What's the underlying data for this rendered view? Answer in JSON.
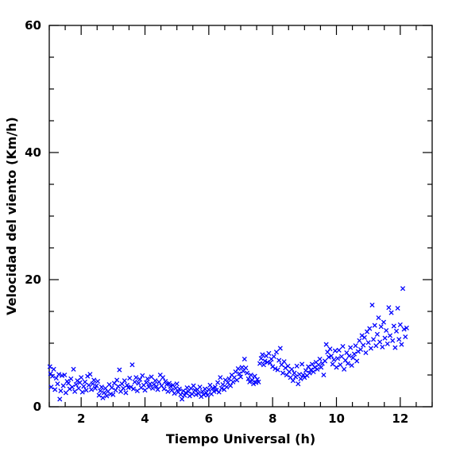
{
  "chart_data": {
    "type": "scatter",
    "title": "",
    "xlabel": "Tiempo Universal (h)",
    "ylabel": "Velocidad del viento (Km/h)",
    "xlim": [
      1,
      13
    ],
    "ylim": [
      0,
      60
    ],
    "xticks": [
      2,
      4,
      6,
      8,
      10,
      12
    ],
    "yticks": [
      0,
      20,
      40,
      60
    ],
    "x_minor_step": 0.5,
    "y_minor_step": 5,
    "grid": false,
    "legend": "none",
    "marker": "x",
    "color": "#0000ff",
    "series": [
      {
        "name": "",
        "points": [
          [
            1.02,
            6.3
          ],
          [
            1.04,
            5.2
          ],
          [
            1.06,
            3.1
          ],
          [
            1.1,
            4.8
          ],
          [
            1.14,
            5.9
          ],
          [
            1.18,
            2.7
          ],
          [
            1.22,
            4.5
          ],
          [
            1.26,
            3.6
          ],
          [
            1.3,
            5.1
          ],
          [
            1.33,
            1.2
          ],
          [
            1.36,
            2.5
          ],
          [
            1.4,
            4.9
          ],
          [
            1.44,
            3.3
          ],
          [
            1.48,
            5.0
          ],
          [
            1.52,
            2.2
          ],
          [
            1.56,
            4.0
          ],
          [
            1.6,
            3.7
          ],
          [
            1.64,
            2.8
          ],
          [
            1.68,
            4.4
          ],
          [
            1.72,
            3.1
          ],
          [
            1.76,
            5.9
          ],
          [
            1.8,
            2.4
          ],
          [
            1.84,
            3.5
          ],
          [
            1.88,
            4.1
          ],
          [
            1.92,
            2.9
          ],
          [
            1.96,
            3.8
          ],
          [
            2.0,
            4.6
          ],
          [
            2.04,
            2.3
          ],
          [
            2.08,
            3.2
          ],
          [
            2.12,
            3.9
          ],
          [
            2.16,
            2.6
          ],
          [
            2.2,
            4.8
          ],
          [
            2.24,
            3.4
          ],
          [
            2.28,
            5.1
          ],
          [
            2.32,
            2.7
          ],
          [
            2.36,
            3.6
          ],
          [
            2.4,
            4.2
          ],
          [
            2.44,
            2.9
          ],
          [
            2.48,
            3.3
          ],
          [
            2.52,
            4.0
          ],
          [
            2.56,
            1.8
          ],
          [
            2.6,
            2.5
          ],
          [
            2.64,
            3.1
          ],
          [
            2.68,
            1.4
          ],
          [
            2.72,
            2.2
          ],
          [
            2.76,
            2.9
          ],
          [
            2.8,
            1.7
          ],
          [
            2.84,
            2.4
          ],
          [
            2.88,
            3.5
          ],
          [
            2.92,
            2.0
          ],
          [
            2.96,
            3.0
          ],
          [
            3.0,
            1.9
          ],
          [
            3.04,
            3.7
          ],
          [
            3.08,
            2.6
          ],
          [
            3.12,
            4.2
          ],
          [
            3.16,
            3.2
          ],
          [
            3.2,
            5.8
          ],
          [
            3.24,
            2.4
          ],
          [
            3.28,
            3.6
          ],
          [
            3.32,
            2.9
          ],
          [
            3.36,
            4.1
          ],
          [
            3.4,
            2.2
          ],
          [
            3.44,
            3.4
          ],
          [
            3.48,
            3.0
          ],
          [
            3.52,
            4.5
          ],
          [
            3.56,
            3.1
          ],
          [
            3.6,
            6.6
          ],
          [
            3.64,
            2.8
          ],
          [
            3.68,
            3.9
          ],
          [
            3.72,
            4.6
          ],
          [
            3.76,
            2.5
          ],
          [
            3.8,
            3.7
          ],
          [
            3.84,
            4.3
          ],
          [
            3.88,
            3.0
          ],
          [
            3.92,
            4.9
          ],
          [
            3.96,
            3.4
          ],
          [
            4.0,
            2.6
          ],
          [
            4.04,
            3.8
          ],
          [
            4.08,
            4.4
          ],
          [
            4.12,
            3.1
          ],
          [
            4.16,
            3.6
          ],
          [
            4.2,
            4.7
          ],
          [
            4.24,
            2.9
          ],
          [
            4.28,
            3.5
          ],
          [
            4.32,
            4.1
          ],
          [
            4.36,
            3.2
          ],
          [
            4.4,
            2.7
          ],
          [
            4.44,
            3.9
          ],
          [
            4.48,
            5.0
          ],
          [
            4.52,
            3.3
          ],
          [
            4.56,
            4.6
          ],
          [
            4.6,
            2.8
          ],
          [
            4.64,
            4.0
          ],
          [
            4.68,
            3.5
          ],
          [
            4.72,
            2.4
          ],
          [
            4.76,
            3.7
          ],
          [
            4.8,
            3.2
          ],
          [
            4.84,
            2.6
          ],
          [
            4.88,
            3.4
          ],
          [
            4.92,
            2.1
          ],
          [
            4.96,
            2.9
          ],
          [
            5.0,
            3.6
          ],
          [
            5.04,
            2.3
          ],
          [
            5.08,
            2.8
          ],
          [
            5.12,
            1.9
          ],
          [
            5.16,
            1.2
          ],
          [
            5.2,
            2.5
          ],
          [
            5.24,
            1.8
          ],
          [
            5.28,
            2.2
          ],
          [
            5.32,
            3.0
          ],
          [
            5.36,
            2.4
          ],
          [
            5.4,
            1.7
          ],
          [
            5.44,
            2.9
          ],
          [
            5.48,
            2.0
          ],
          [
            5.52,
            3.3
          ],
          [
            5.56,
            2.6
          ],
          [
            5.6,
            1.9
          ],
          [
            5.64,
            2.7
          ],
          [
            5.68,
            2.1
          ],
          [
            5.72,
            3.1
          ],
          [
            5.76,
            1.6
          ],
          [
            5.8,
            2.4
          ],
          [
            5.84,
            1.9
          ],
          [
            5.88,
            2.8
          ],
          [
            5.92,
            2.2
          ],
          [
            5.96,
            1.8
          ],
          [
            6.0,
            2.7
          ],
          [
            6.04,
            3.4
          ],
          [
            6.08,
            2.0
          ],
          [
            6.12,
            2.9
          ],
          [
            6.16,
            2.4
          ],
          [
            6.2,
            3.1
          ],
          [
            6.24,
            2.6
          ],
          [
            6.28,
            3.8
          ],
          [
            6.32,
            2.3
          ],
          [
            6.36,
            4.6
          ],
          [
            6.4,
            2.9
          ],
          [
            6.44,
            3.5
          ],
          [
            6.48,
            2.7
          ],
          [
            6.52,
            4.2
          ],
          [
            6.56,
            3.1
          ],
          [
            6.6,
            3.8
          ],
          [
            6.64,
            4.4
          ],
          [
            6.68,
            3.3
          ],
          [
            6.72,
            5.0
          ],
          [
            6.76,
            3.9
          ],
          [
            6.8,
            4.6
          ],
          [
            6.84,
            5.5
          ],
          [
            6.88,
            4.2
          ],
          [
            6.92,
            6.0
          ],
          [
            6.96,
            5.2
          ],
          [
            7.0,
            4.7
          ],
          [
            7.04,
            6.2
          ],
          [
            7.08,
            5.6
          ],
          [
            7.12,
            7.5
          ],
          [
            7.16,
            6.1
          ],
          [
            7.2,
            5.3
          ],
          [
            7.24,
            4.4
          ],
          [
            7.28,
            3.9
          ],
          [
            7.32,
            5.0
          ],
          [
            7.36,
            4.2
          ],
          [
            7.4,
            3.6
          ],
          [
            7.44,
            4.8
          ],
          [
            7.48,
            3.8
          ],
          [
            7.52,
            4.3
          ],
          [
            7.56,
            3.9
          ],
          [
            7.6,
            6.8
          ],
          [
            7.64,
            7.6
          ],
          [
            7.68,
            8.2
          ],
          [
            7.72,
            6.6
          ],
          [
            7.76,
            7.2
          ],
          [
            7.8,
            8.0
          ],
          [
            7.84,
            7.0
          ],
          [
            7.88,
            8.4
          ],
          [
            7.92,
            6.9
          ],
          [
            7.96,
            7.5
          ],
          [
            8.0,
            6.3
          ],
          [
            8.04,
            7.9
          ],
          [
            8.08,
            6.0
          ],
          [
            8.12,
            8.6
          ],
          [
            8.16,
            5.8
          ],
          [
            8.2,
            7.3
          ],
          [
            8.24,
            9.2
          ],
          [
            8.28,
            6.6
          ],
          [
            8.32,
            5.3
          ],
          [
            8.36,
            7.1
          ],
          [
            8.4,
            6.1
          ],
          [
            8.44,
            5.0
          ],
          [
            8.48,
            6.4
          ],
          [
            8.52,
            5.5
          ],
          [
            8.56,
            4.6
          ],
          [
            8.6,
            5.9
          ],
          [
            8.64,
            4.1
          ],
          [
            8.68,
            5.3
          ],
          [
            8.72,
            4.7
          ],
          [
            8.76,
            6.4
          ],
          [
            8.8,
            3.6
          ],
          [
            8.84,
            5.1
          ],
          [
            8.88,
            4.4
          ],
          [
            8.92,
            6.7
          ],
          [
            8.96,
            5.0
          ],
          [
            9.0,
            4.6
          ],
          [
            9.04,
            5.7
          ],
          [
            9.08,
            4.9
          ],
          [
            9.12,
            6.3
          ],
          [
            9.16,
            5.3
          ],
          [
            9.2,
            5.8
          ],
          [
            9.24,
            6.7
          ],
          [
            9.28,
            5.5
          ],
          [
            9.32,
            6.2
          ],
          [
            9.36,
            7.0
          ],
          [
            9.4,
            5.9
          ],
          [
            9.44,
            6.6
          ],
          [
            9.48,
            7.5
          ],
          [
            9.52,
            6.2
          ],
          [
            9.56,
            6.8
          ],
          [
            9.6,
            5.0
          ],
          [
            9.64,
            7.2
          ],
          [
            9.68,
            9.8
          ],
          [
            9.72,
            8.6
          ],
          [
            9.76,
            7.8
          ],
          [
            9.8,
            9.1
          ],
          [
            9.84,
            8.0
          ],
          [
            9.88,
            6.7
          ],
          [
            9.92,
            7.4
          ],
          [
            9.96,
            8.8
          ],
          [
            10.0,
            6.2
          ],
          [
            10.04,
            7.6
          ],
          [
            10.08,
            8.9
          ],
          [
            10.12,
            6.6
          ],
          [
            10.16,
            7.9
          ],
          [
            10.2,
            9.5
          ],
          [
            10.24,
            5.9
          ],
          [
            10.28,
            7.3
          ],
          [
            10.32,
            8.5
          ],
          [
            10.36,
            6.8
          ],
          [
            10.4,
            8.0
          ],
          [
            10.44,
            9.3
          ],
          [
            10.48,
            6.5
          ],
          [
            10.52,
            7.7
          ],
          [
            10.56,
            8.3
          ],
          [
            10.6,
            9.6
          ],
          [
            10.64,
            7.2
          ],
          [
            10.68,
            8.7
          ],
          [
            10.72,
            10.4
          ],
          [
            10.76,
            9.0
          ],
          [
            10.8,
            11.2
          ],
          [
            10.84,
            9.7
          ],
          [
            10.88,
            10.9
          ],
          [
            10.92,
            8.5
          ],
          [
            10.96,
            11.8
          ],
          [
            11.0,
            10.1
          ],
          [
            11.04,
            12.3
          ],
          [
            11.08,
            9.2
          ],
          [
            11.12,
            16.0
          ],
          [
            11.16,
            10.6
          ],
          [
            11.2,
            12.8
          ],
          [
            11.24,
            9.6
          ],
          [
            11.28,
            11.4
          ],
          [
            11.32,
            14.0
          ],
          [
            11.36,
            10.2
          ],
          [
            11.4,
            12.6
          ],
          [
            11.44,
            9.4
          ],
          [
            11.48,
            13.3
          ],
          [
            11.52,
            10.8
          ],
          [
            11.56,
            12.0
          ],
          [
            11.6,
            9.9
          ],
          [
            11.64,
            15.6
          ],
          [
            11.68,
            11.2
          ],
          [
            11.72,
            14.8
          ],
          [
            11.76,
            10.4
          ],
          [
            11.8,
            12.7
          ],
          [
            11.84,
            9.3
          ],
          [
            11.88,
            11.9
          ],
          [
            11.92,
            15.5
          ],
          [
            11.96,
            10.6
          ],
          [
            12.0,
            12.9
          ],
          [
            12.04,
            9.8
          ],
          [
            12.08,
            18.6
          ],
          [
            12.12,
            12.2
          ],
          [
            12.16,
            11.0
          ],
          [
            12.2,
            12.4
          ]
        ]
      }
    ]
  }
}
